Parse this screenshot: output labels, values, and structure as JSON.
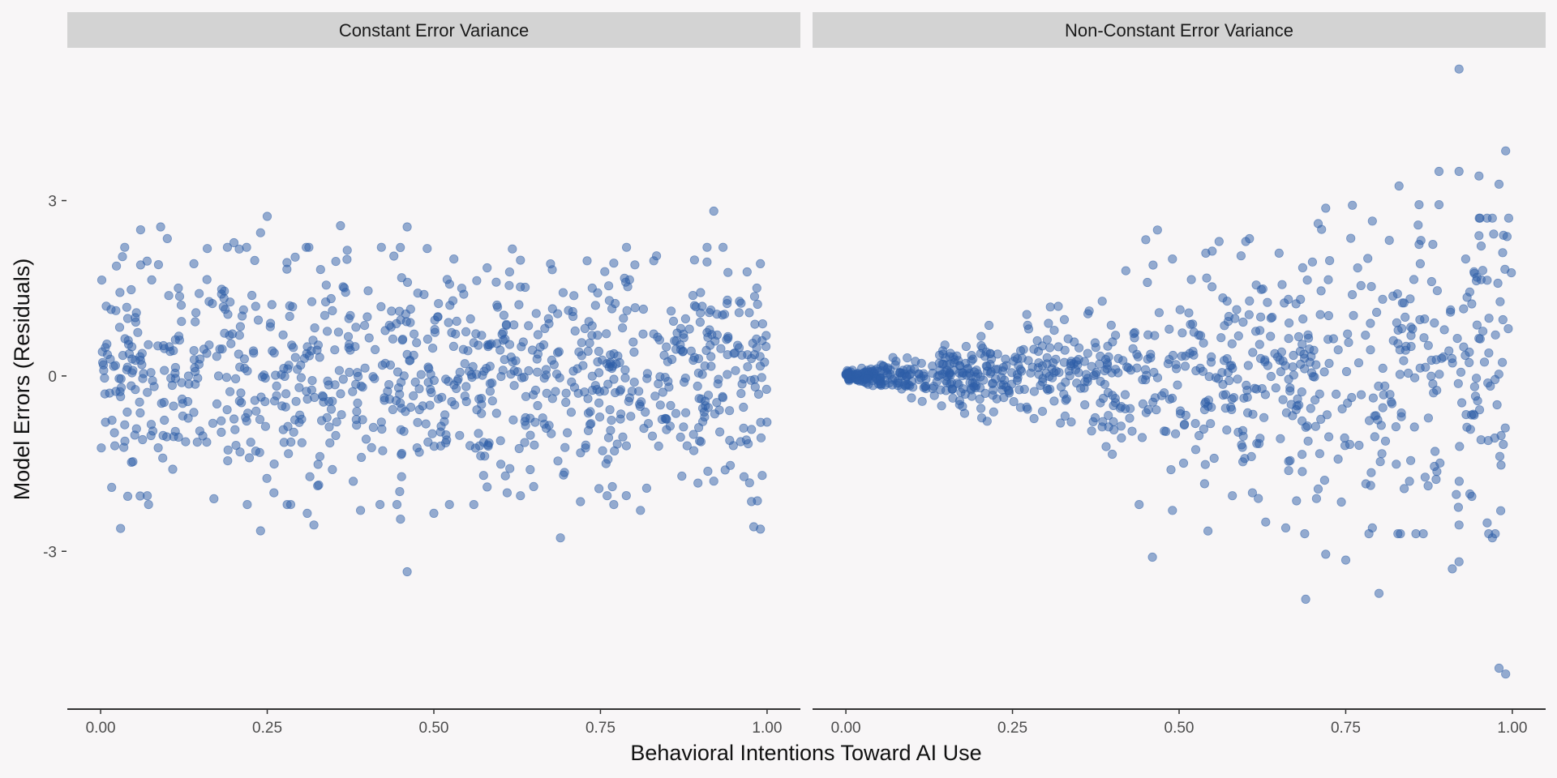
{
  "chart_data": {
    "type": "scatter",
    "xlabel": "Behavioral Intentions Toward AI Use",
    "ylabel": "Model Errors (Residuals)",
    "xlim": [
      -0.05,
      1.05
    ],
    "ylim": [
      -5.7,
      5.6
    ],
    "x_ticks": [
      0,
      0.25,
      0.5,
      0.75,
      1
    ],
    "x_tick_labels": [
      "0.00",
      "0.25",
      "0.50",
      "0.75",
      "1.00"
    ],
    "y_ticks": [
      -3,
      0,
      3
    ],
    "y_tick_labels": [
      "-3",
      "0",
      "3"
    ],
    "grid": false,
    "legend": "none",
    "colors": {
      "point": "#2e5ea8",
      "strip": "#d3d3d3",
      "background": "#f8f6f7",
      "axis": "#333333"
    },
    "panels": [
      {
        "title": "Constant Error Variance",
        "points": [
          [
            0.46,
            -3.35
          ],
          [
            0.03,
            -2.61
          ],
          [
            0.24,
            -2.65
          ],
          [
            0.69,
            -2.77
          ],
          [
            0.99,
            -2.62
          ],
          [
            0.98,
            -2.58
          ],
          [
            0.92,
            2.82
          ],
          [
            0.25,
            2.73
          ],
          [
            0.09,
            2.55
          ],
          [
            0.06,
            2.5
          ],
          [
            0.36,
            2.57
          ],
          [
            0.46,
            2.55
          ],
          [
            0.1,
            2.35
          ],
          [
            0.2,
            2.28
          ],
          [
            0.49,
            2.18
          ],
          [
            0.37,
            2.15
          ],
          [
            0.16,
            2.18
          ],
          [
            0.24,
            2.45
          ],
          [
            0.5,
            -2.35
          ],
          [
            0.56,
            -2.2
          ],
          [
            0.72,
            -2.15
          ],
          [
            0.76,
            -2.05
          ],
          [
            0.81,
            -2.3
          ],
          [
            0.32,
            -2.55
          ],
          [
            0.39,
            -2.3
          ],
          [
            0.45,
            -2.45
          ],
          [
            0.22,
            -2.2
          ],
          [
            0.31,
            -2.35
          ],
          [
            0.17,
            -2.1
          ],
          [
            0.07,
            -2.05
          ],
          [
            0.92,
            -1.8
          ],
          [
            0.61,
            -2.0
          ],
          [
            0.63,
            -2.05
          ],
          [
            0.58,
            -1.9
          ],
          [
            0.26,
            -2.0
          ],
          [
            0.53,
            2.0
          ],
          [
            0.58,
            1.85
          ],
          [
            0.63,
            1.98
          ],
          [
            0.73,
            1.97
          ],
          [
            0.77,
            1.93
          ],
          [
            0.83,
            1.97
          ],
          [
            0.91,
            1.95
          ],
          [
            0.97,
            1.78
          ],
          [
            0.99,
            1.92
          ],
          [
            0.06,
            1.9
          ],
          [
            0.14,
            1.92
          ],
          [
            0.33,
            1.82
          ],
          [
            0.44,
            2.05
          ],
          [
            0.52,
            1.65
          ]
        ],
        "generated_cloud": {
          "n": 900,
          "x_range": [
            0,
            1
          ],
          "spread_sd": 0.95,
          "spread_model": "constant"
        }
      },
      {
        "title": "Non-Constant Error Variance",
        "points": [
          [
            0.92,
            5.25
          ],
          [
            0.99,
            3.85
          ],
          [
            0.89,
            3.5
          ],
          [
            0.92,
            3.5
          ],
          [
            0.98,
            3.28
          ],
          [
            0.95,
            3.42
          ],
          [
            0.83,
            3.25
          ],
          [
            0.72,
            2.87
          ],
          [
            0.76,
            2.92
          ],
          [
            0.86,
            2.93
          ],
          [
            0.89,
            2.93
          ],
          [
            0.79,
            2.65
          ],
          [
            0.99,
            -5.1
          ],
          [
            0.98,
            -5.0
          ],
          [
            0.69,
            -3.82
          ],
          [
            0.8,
            -3.72
          ],
          [
            0.75,
            -3.15
          ],
          [
            0.72,
            -3.05
          ],
          [
            0.92,
            -3.18
          ],
          [
            0.91,
            -3.3
          ],
          [
            0.46,
            -3.1
          ],
          [
            0.97,
            -2.77
          ],
          [
            0.92,
            -2.55
          ],
          [
            0.79,
            -2.6
          ],
          [
            0.66,
            -2.6
          ],
          [
            0.63,
            -2.5
          ],
          [
            0.61,
            -2.0
          ],
          [
            0.58,
            -2.05
          ],
          [
            0.49,
            -2.3
          ],
          [
            0.44,
            -2.2
          ],
          [
            0.56,
            2.3
          ],
          [
            0.6,
            2.3
          ],
          [
            0.45,
            2.33
          ],
          [
            0.42,
            1.8
          ],
          [
            0.49,
            2.0
          ],
          [
            0.54,
            2.1
          ],
          [
            0.65,
            2.1
          ],
          [
            0.7,
            1.95
          ],
          [
            0.86,
            2.25
          ],
          [
            0.93,
            2.0
          ],
          [
            0.95,
            2.4
          ],
          [
            0.97,
            2.7
          ]
        ],
        "generated_cloud": {
          "n": 900,
          "x_range": [
            0,
            1
          ],
          "spread_sd": [
            0.03,
            1.5
          ],
          "spread_model": "linear"
        }
      }
    ]
  }
}
